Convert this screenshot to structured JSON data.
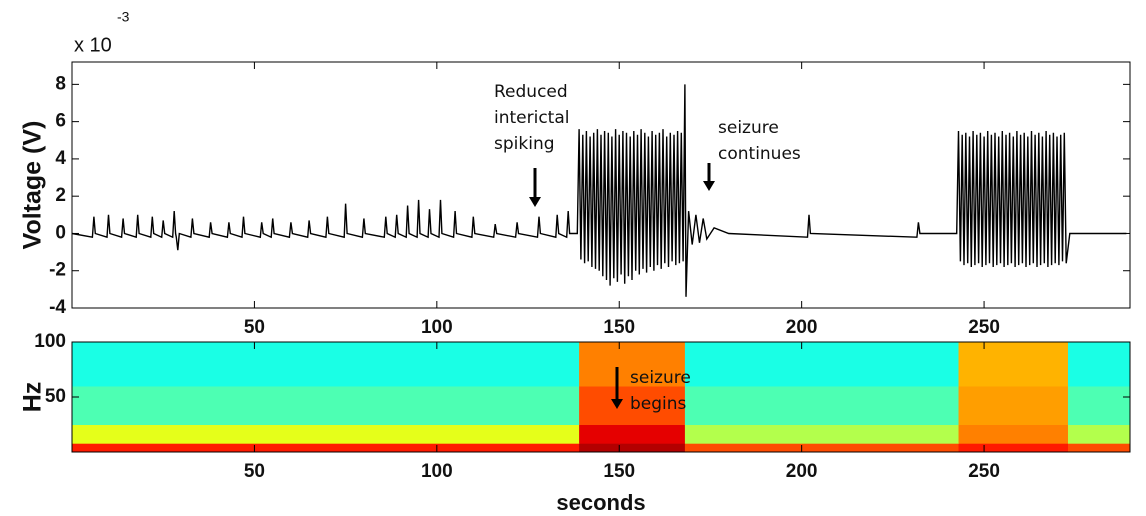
{
  "chart_data": [
    {
      "type": "line",
      "ylabel": "Voltage (V)",
      "y_multiplier": "x 10",
      "y_exponent": "-3",
      "color": "#000000",
      "xlim": [
        0,
        290
      ],
      "xticks": [
        50,
        100,
        150,
        200,
        250
      ],
      "ylim": [
        -4,
        9.2
      ],
      "yticks": [
        -4,
        -2,
        0,
        2,
        4,
        6,
        8
      ],
      "annotations": [
        {
          "lines": [
            "Reduced",
            "interictal",
            "spiking"
          ]
        },
        {
          "lines": [
            "seizure",
            "continues"
          ]
        }
      ],
      "x": [
        0,
        5.6,
        6,
        6.4,
        9.6,
        10,
        10.4,
        13.6,
        14,
        14.4,
        17.6,
        18,
        18.4,
        21.6,
        22,
        22.4,
        24.6,
        25,
        25.4,
        27.6,
        28,
        28.4,
        28.6,
        29,
        29.4,
        32.6,
        33,
        33.4,
        37.6,
        38,
        38.4,
        42.6,
        43,
        43.4,
        46.6,
        47,
        47.4,
        51.6,
        52,
        52.4,
        54.6,
        55,
        55.4,
        59.6,
        60,
        60.4,
        64.6,
        65,
        65.4,
        69.6,
        70,
        70.4,
        74.6,
        75,
        75.4,
        79.6,
        80,
        80.4,
        85.6,
        86,
        86.4,
        88.6,
        89,
        89.4,
        91.6,
        92,
        92.4,
        94.6,
        95,
        95.4,
        97.6,
        98,
        98.4,
        100.6,
        101,
        101.4,
        104.6,
        105,
        105.4,
        109.6,
        110,
        110.4,
        115.6,
        116,
        116.4,
        121.6,
        122,
        122.4,
        127.6,
        128,
        128.4,
        132.6,
        133,
        133.4,
        135.6,
        136,
        136.4,
        138.5,
        139,
        139.5,
        140,
        140.5,
        141,
        141.5,
        142,
        142.5,
        143,
        143.5,
        144,
        144.5,
        145,
        145.5,
        146,
        146.5,
        147,
        147.5,
        148,
        148.5,
        149,
        149.5,
        150,
        150.5,
        151,
        151.5,
        152,
        152.5,
        153,
        153.5,
        154,
        154.5,
        155,
        155.5,
        156,
        156.5,
        157,
        157.5,
        158,
        158.5,
        159,
        159.5,
        160,
        160.5,
        161,
        161.5,
        162,
        162.5,
        163,
        163.5,
        164,
        164.5,
        165,
        165.5,
        166,
        166.5,
        167,
        167.5,
        168,
        168.3,
        169,
        170,
        171,
        172,
        173,
        174,
        176,
        180,
        201.6,
        202,
        202.4,
        231.6,
        232,
        232.4,
        242.5,
        243,
        243.5,
        244,
        244.5,
        245,
        245.5,
        246,
        246.5,
        247,
        247.5,
        248,
        248.5,
        249,
        249.5,
        250,
        250.5,
        251,
        251.5,
        252,
        252.5,
        253,
        253.5,
        254,
        254.5,
        255,
        255.5,
        256,
        256.5,
        257,
        257.5,
        258,
        258.5,
        259,
        259.5,
        260,
        260.5,
        261,
        261.5,
        262,
        262.5,
        263,
        263.5,
        264,
        264.5,
        265,
        265.5,
        266,
        266.5,
        267,
        267.5,
        268,
        268.5,
        269,
        269.5,
        270,
        270.5,
        271,
        271.5,
        272,
        272.5,
        273.5,
        289
      ],
      "values": [
        0,
        -0.2,
        0.9,
        0,
        -0.2,
        1.0,
        0,
        -0.2,
        0.8,
        0,
        -0.2,
        1.0,
        0,
        -0.2,
        0.9,
        0,
        -0.2,
        0.7,
        0,
        -0.2,
        1.2,
        0,
        -0.2,
        -0.9,
        0,
        -0.2,
        0.8,
        0,
        -0.2,
        0.6,
        0,
        -0.2,
        0.6,
        0,
        -0.2,
        0.9,
        0,
        -0.2,
        0.6,
        0,
        -0.2,
        0.8,
        0,
        -0.2,
        0.6,
        0,
        -0.2,
        0.7,
        0,
        -0.2,
        0.9,
        0,
        -0.2,
        1.6,
        0,
        -0.2,
        0.8,
        0,
        -0.2,
        0.9,
        0,
        -0.2,
        1.0,
        0,
        -0.2,
        1.5,
        0,
        -0.2,
        1.8,
        0,
        -0.2,
        1.3,
        0,
        -0.2,
        1.8,
        0,
        -0.2,
        1.2,
        0,
        -0.2,
        0.9,
        0,
        -0.2,
        0.5,
        0,
        -0.2,
        0.6,
        0,
        -0.2,
        0.9,
        0,
        -0.2,
        1.0,
        0,
        -0.2,
        1.2,
        0,
        0,
        5.6,
        -1.4,
        5.3,
        -1.6,
        5.5,
        -1.5,
        5.2,
        -1.8,
        5.4,
        -1.9,
        5.6,
        -2.0,
        5.3,
        -2.3,
        5.5,
        -2.5,
        5.4,
        -2.8,
        5.2,
        -2.4,
        5.6,
        -2.6,
        5.3,
        -2.2,
        5.5,
        -2.7,
        5.4,
        -2.3,
        5.2,
        -2.5,
        5.5,
        -2.0,
        5.3,
        -2.2,
        5.6,
        -1.9,
        5.4,
        -2.1,
        5.2,
        -1.8,
        5.5,
        -2.0,
        5.3,
        -1.7,
        5.4,
        -1.9,
        5.6,
        -1.6,
        5.2,
        -1.8,
        5.4,
        -1.5,
        5.3,
        -1.7,
        5.5,
        -1.6,
        5.4,
        -1.5,
        8.0,
        -3.4,
        1.2,
        -0.6,
        1.0,
        -0.5,
        0.8,
        -0.3,
        0.3,
        0,
        -0.2,
        1.0,
        0,
        -0.2,
        0.6,
        0,
        0,
        5.5,
        -1.5,
        5.3,
        -1.7,
        5.4,
        -1.6,
        5.2,
        -1.8,
        5.5,
        -1.7,
        5.3,
        -1.6,
        5.4,
        -1.8,
        5.2,
        -1.7,
        5.5,
        -1.6,
        5.3,
        -1.8,
        5.4,
        -1.7,
        5.2,
        -1.6,
        5.5,
        -1.8,
        5.3,
        -1.7,
        5.4,
        -1.6,
        5.2,
        -1.8,
        5.5,
        -1.7,
        5.3,
        -1.6,
        5.4,
        -1.8,
        5.2,
        -1.7,
        5.5,
        -1.6,
        5.3,
        -1.8,
        5.4,
        -1.7,
        5.2,
        -1.6,
        5.5,
        -1.8,
        5.3,
        -1.7,
        5.4,
        -1.6,
        5.2,
        -1.7,
        5.3,
        -1.5,
        5.4,
        -1.6,
        0,
        0
      ]
    },
    {
      "type": "heatmap",
      "ylabel": "Hz",
      "xlabel": "seconds",
      "xlim": [
        0,
        290
      ],
      "xticks": [
        50,
        100,
        150,
        200,
        250
      ],
      "ylim": [
        0,
        100
      ],
      "yticks": [
        50,
        100
      ],
      "x_edges": [
        0,
        139,
        168,
        243,
        273,
        290
      ],
      "y_edges": [
        0,
        8,
        25,
        60,
        100
      ],
      "values": [
        [
          0.85,
          0.95,
          0.8,
          0.85,
          0.8
        ],
        [
          0.6,
          0.9,
          0.55,
          0.75,
          0.55
        ],
        [
          0.45,
          0.8,
          0.45,
          0.72,
          0.45
        ],
        [
          0.4,
          0.75,
          0.4,
          0.7,
          0.4
        ]
      ],
      "annotations": [
        {
          "lines": [
            "seizure",
            "begins"
          ]
        }
      ]
    }
  ]
}
